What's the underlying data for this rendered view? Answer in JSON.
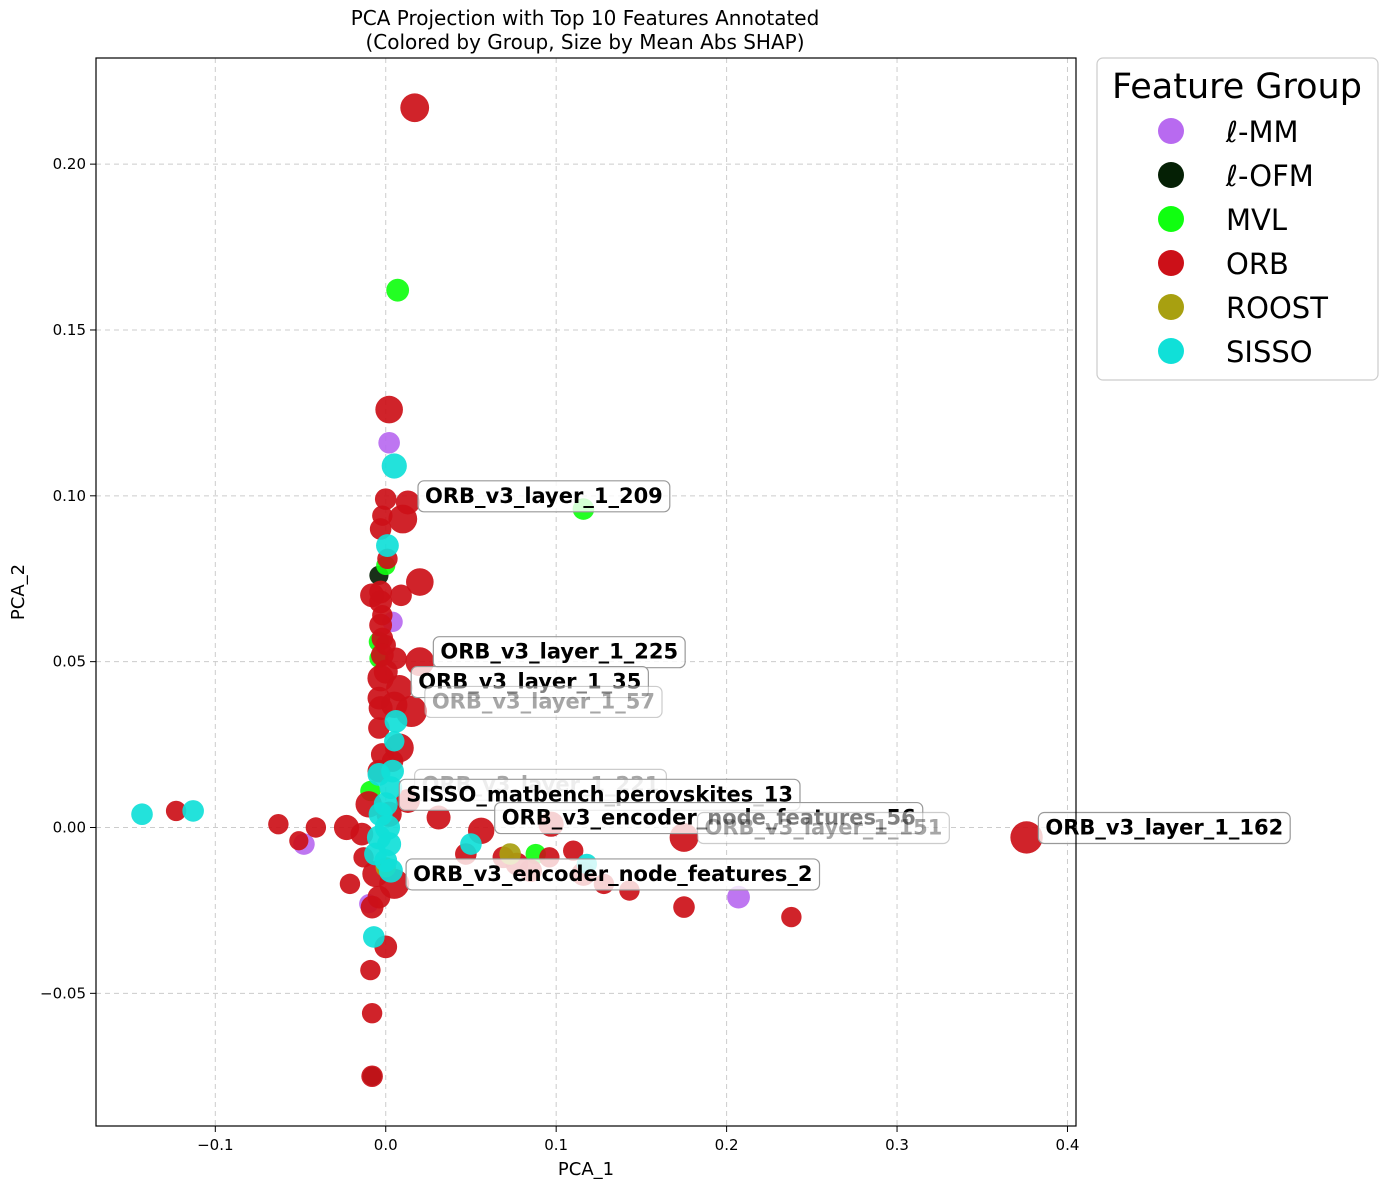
{
  "chart_data": {
    "type": "scatter",
    "title": "PCA Projection with Top 10 Features Annotated",
    "subtitle": "(Colored by Group, Size by Mean Abs SHAP)",
    "xlabel": "PCA_1",
    "ylabel": "PCA_2",
    "xlim": [
      -0.17,
      0.405
    ],
    "ylim": [
      -0.09,
      0.232
    ],
    "x_ticks": [
      -0.1,
      0.0,
      0.1,
      0.2,
      0.3,
      0.4
    ],
    "x_tick_labels": [
      "−0.1",
      "0.0",
      "0.1",
      "0.2",
      "0.3",
      "0.4"
    ],
    "y_ticks": [
      -0.05,
      0.0,
      0.05,
      0.1,
      0.15,
      0.2
    ],
    "y_tick_labels": [
      "−0.05",
      "0.00",
      "0.05",
      "0.10",
      "0.15",
      "0.20"
    ],
    "grid": true,
    "legend": {
      "title": "Feature Group",
      "placement": "outside-top-right",
      "entries": [
        {
          "label": "ℓ-MM",
          "color": "#b86af0"
        },
        {
          "label": "ℓ-OFM",
          "color": "#052005"
        },
        {
          "label": "MVL",
          "color": "#10ff10"
        },
        {
          "label": "ORB",
          "color": "#cc1018"
        },
        {
          "label": "ROOST",
          "color": "#a8a010"
        },
        {
          "label": "SISSO",
          "color": "#10e0d8"
        }
      ]
    },
    "series": [
      {
        "name": "ℓ-MM",
        "color": "#b86af0",
        "points": [
          {
            "x": 0.002,
            "y": 0.116,
            "s": 0.4
          },
          {
            "x": 0.004,
            "y": 0.062,
            "s": 0.35
          },
          {
            "x": -0.048,
            "y": -0.005,
            "s": 0.4
          },
          {
            "x": 0.207,
            "y": -0.021,
            "s": 0.45
          },
          {
            "x": -0.01,
            "y": -0.023,
            "s": 0.3
          }
        ]
      },
      {
        "name": "ℓ-OFM",
        "color": "#052005",
        "points": [
          {
            "x": -0.004,
            "y": 0.076,
            "s": 0.3
          },
          {
            "x": -0.008,
            "y": -0.075,
            "s": 0.3
          }
        ]
      },
      {
        "name": "MVL",
        "color": "#10ff10",
        "points": [
          {
            "x": 0.007,
            "y": 0.162,
            "s": 0.45
          },
          {
            "x": 0.116,
            "y": 0.096,
            "s": 0.4
          },
          {
            "x": 0.0,
            "y": 0.079,
            "s": 0.3
          },
          {
            "x": -0.004,
            "y": 0.056,
            "s": 0.35
          },
          {
            "x": -0.004,
            "y": 0.051,
            "s": 0.3
          },
          {
            "x": -0.009,
            "y": 0.011,
            "s": 0.35
          },
          {
            "x": 0.088,
            "y": -0.008,
            "s": 0.35
          }
        ]
      },
      {
        "name": "ORB",
        "color": "#cc1018",
        "points": [
          {
            "x": 0.017,
            "y": 0.217,
            "s": 0.7
          },
          {
            "x": 0.002,
            "y": 0.126,
            "s": 0.65
          },
          {
            "x": 0.0,
            "y": 0.099,
            "s": 0.4
          },
          {
            "x": 0.01,
            "y": 0.093,
            "s": 0.7
          },
          {
            "x": 0.013,
            "y": 0.098,
            "s": 0.5
          },
          {
            "x": -0.002,
            "y": 0.094,
            "s": 0.35
          },
          {
            "x": -0.003,
            "y": 0.09,
            "s": 0.4
          },
          {
            "x": 0.001,
            "y": 0.081,
            "s": 0.35
          },
          {
            "x": 0.02,
            "y": 0.074,
            "s": 0.65
          },
          {
            "x": -0.003,
            "y": 0.071,
            "s": 0.45
          },
          {
            "x": -0.008,
            "y": 0.07,
            "s": 0.5
          },
          {
            "x": 0.009,
            "y": 0.07,
            "s": 0.4
          },
          {
            "x": -0.003,
            "y": 0.068,
            "s": 0.45
          },
          {
            "x": -0.002,
            "y": 0.064,
            "s": 0.35
          },
          {
            "x": -0.003,
            "y": 0.061,
            "s": 0.45
          },
          {
            "x": -0.002,
            "y": 0.057,
            "s": 0.4
          },
          {
            "x": 0.0,
            "y": 0.055,
            "s": 0.35
          },
          {
            "x": 0.02,
            "y": 0.05,
            "s": 0.7
          },
          {
            "x": -0.002,
            "y": 0.052,
            "s": 0.45
          },
          {
            "x": 0.006,
            "y": 0.051,
            "s": 0.4
          },
          {
            "x": 0.0,
            "y": 0.047,
            "s": 0.5
          },
          {
            "x": -0.003,
            "y": 0.045,
            "s": 0.6
          },
          {
            "x": 0.008,
            "y": 0.042,
            "s": 0.6
          },
          {
            "x": -0.004,
            "y": 0.039,
            "s": 0.45
          },
          {
            "x": 0.005,
            "y": 0.037,
            "s": 0.6
          },
          {
            "x": 0.015,
            "y": 0.035,
            "s": 0.8
          },
          {
            "x": -0.003,
            "y": 0.036,
            "s": 0.5
          },
          {
            "x": -0.004,
            "y": 0.03,
            "s": 0.4
          },
          {
            "x": 0.008,
            "y": 0.024,
            "s": 0.7
          },
          {
            "x": -0.002,
            "y": 0.022,
            "s": 0.45
          },
          {
            "x": 0.004,
            "y": 0.02,
            "s": 0.4
          },
          {
            "x": -0.004,
            "y": 0.017,
            "s": 0.45
          },
          {
            "x": 0.013,
            "y": 0.008,
            "s": 0.5
          },
          {
            "x": -0.01,
            "y": 0.007,
            "s": 0.6
          },
          {
            "x": 0.002,
            "y": 0.004,
            "s": 0.55
          },
          {
            "x": -0.123,
            "y": 0.005,
            "s": 0.35
          },
          {
            "x": -0.063,
            "y": 0.001,
            "s": 0.35
          },
          {
            "x": -0.051,
            "y": -0.004,
            "s": 0.3
          },
          {
            "x": -0.041,
            "y": 0.0,
            "s": 0.35
          },
          {
            "x": -0.023,
            "y": 0.0,
            "s": 0.55
          },
          {
            "x": -0.014,
            "y": -0.002,
            "s": 0.45
          },
          {
            "x": 0.031,
            "y": 0.003,
            "s": 0.5
          },
          {
            "x": 0.056,
            "y": -0.001,
            "s": 0.6
          },
          {
            "x": 0.097,
            "y": 0.001,
            "s": 0.55
          },
          {
            "x": 0.175,
            "y": -0.003,
            "s": 0.7
          },
          {
            "x": 0.376,
            "y": -0.003,
            "s": 0.85
          },
          {
            "x": 0.047,
            "y": -0.008,
            "s": 0.4
          },
          {
            "x": 0.069,
            "y": -0.009,
            "s": 0.4
          },
          {
            "x": 0.077,
            "y": -0.011,
            "s": 0.45
          },
          {
            "x": 0.085,
            "y": -0.013,
            "s": 0.45
          },
          {
            "x": 0.096,
            "y": -0.009,
            "s": 0.35
          },
          {
            "x": 0.11,
            "y": -0.007,
            "s": 0.35
          },
          {
            "x": 0.116,
            "y": -0.014,
            "s": 0.5
          },
          {
            "x": 0.128,
            "y": -0.017,
            "s": 0.35
          },
          {
            "x": 0.143,
            "y": -0.019,
            "s": 0.35
          },
          {
            "x": 0.175,
            "y": -0.024,
            "s": 0.4
          },
          {
            "x": 0.238,
            "y": -0.027,
            "s": 0.35
          },
          {
            "x": -0.021,
            "y": -0.017,
            "s": 0.35
          },
          {
            "x": -0.013,
            "y": -0.009,
            "s": 0.35
          },
          {
            "x": -0.006,
            "y": -0.014,
            "s": 0.6
          },
          {
            "x": 0.005,
            "y": -0.017,
            "s": 0.75
          },
          {
            "x": -0.004,
            "y": -0.021,
            "s": 0.45
          },
          {
            "x": -0.008,
            "y": -0.024,
            "s": 0.45
          },
          {
            "x": 0.0,
            "y": -0.036,
            "s": 0.45
          },
          {
            "x": -0.009,
            "y": -0.043,
            "s": 0.35
          },
          {
            "x": -0.008,
            "y": -0.056,
            "s": 0.35
          },
          {
            "x": -0.008,
            "y": -0.075,
            "s": 0.4
          }
        ]
      },
      {
        "name": "ROOST",
        "color": "#a8a010",
        "points": [
          {
            "x": 0.073,
            "y": -0.008,
            "s": 0.4
          },
          {
            "x": 0.0,
            "y": -0.012,
            "s": 0.35
          }
        ]
      },
      {
        "name": "SISSO",
        "color": "#10e0d8",
        "points": [
          {
            "x": 0.005,
            "y": 0.109,
            "s": 0.55
          },
          {
            "x": 0.001,
            "y": 0.085,
            "s": 0.45
          },
          {
            "x": 0.006,
            "y": 0.032,
            "s": 0.45
          },
          {
            "x": 0.005,
            "y": 0.026,
            "s": 0.35
          },
          {
            "x": 0.004,
            "y": 0.017,
            "s": 0.45
          },
          {
            "x": -0.004,
            "y": 0.016,
            "s": 0.45
          },
          {
            "x": 0.003,
            "y": 0.012,
            "s": 0.45
          },
          {
            "x": 0.0,
            "y": 0.007,
            "s": 0.5
          },
          {
            "x": -0.003,
            "y": 0.004,
            "s": 0.5
          },
          {
            "x": 0.001,
            "y": 0.0,
            "s": 0.55
          },
          {
            "x": -0.004,
            "y": -0.003,
            "s": 0.5
          },
          {
            "x": 0.002,
            "y": -0.005,
            "s": 0.5
          },
          {
            "x": -0.006,
            "y": -0.008,
            "s": 0.45
          },
          {
            "x": 0.0,
            "y": -0.01,
            "s": 0.45
          },
          {
            "x": 0.003,
            "y": -0.013,
            "s": 0.5
          },
          {
            "x": -0.143,
            "y": 0.004,
            "s": 0.4
          },
          {
            "x": -0.113,
            "y": 0.005,
            "s": 0.4
          },
          {
            "x": 0.05,
            "y": -0.005,
            "s": 0.4
          },
          {
            "x": 0.118,
            "y": -0.011,
            "s": 0.35
          },
          {
            "x": -0.007,
            "y": -0.033,
            "s": 0.4
          }
        ]
      }
    ],
    "annotations": [
      {
        "text": "ORB_v3_layer_1_209",
        "x": 0.016,
        "y": 0.1,
        "faded": false
      },
      {
        "text": "ORB_v3_layer_1_225",
        "x": 0.025,
        "y": 0.053,
        "faded": false
      },
      {
        "text": "ORB_v3_layer_1_35",
        "x": 0.012,
        "y": 0.044,
        "faded": false
      },
      {
        "text": "ORB_v3_layer_1_57",
        "x": 0.02,
        "y": 0.038,
        "faded": true
      },
      {
        "text": "ORB_v3_layer_1_221",
        "x": 0.014,
        "y": 0.013,
        "faded": true
      },
      {
        "text": "SISSO_matbench_perovskites_13",
        "x": 0.005,
        "y": 0.01,
        "faded": false
      },
      {
        "text": "ORB_v3_encoder_node_features_56",
        "x": 0.061,
        "y": 0.003,
        "faded": false
      },
      {
        "text": "ORB_v3_layer_1_151",
        "x": 0.18,
        "y": 0.0,
        "faded": true
      },
      {
        "text": "ORB_v3_layer_1_162",
        "x": 0.38,
        "y": 0.0,
        "faded": false
      },
      {
        "text": "ORB_v3_encoder_node_features_2",
        "x": 0.009,
        "y": -0.014,
        "faded": false
      }
    ]
  }
}
